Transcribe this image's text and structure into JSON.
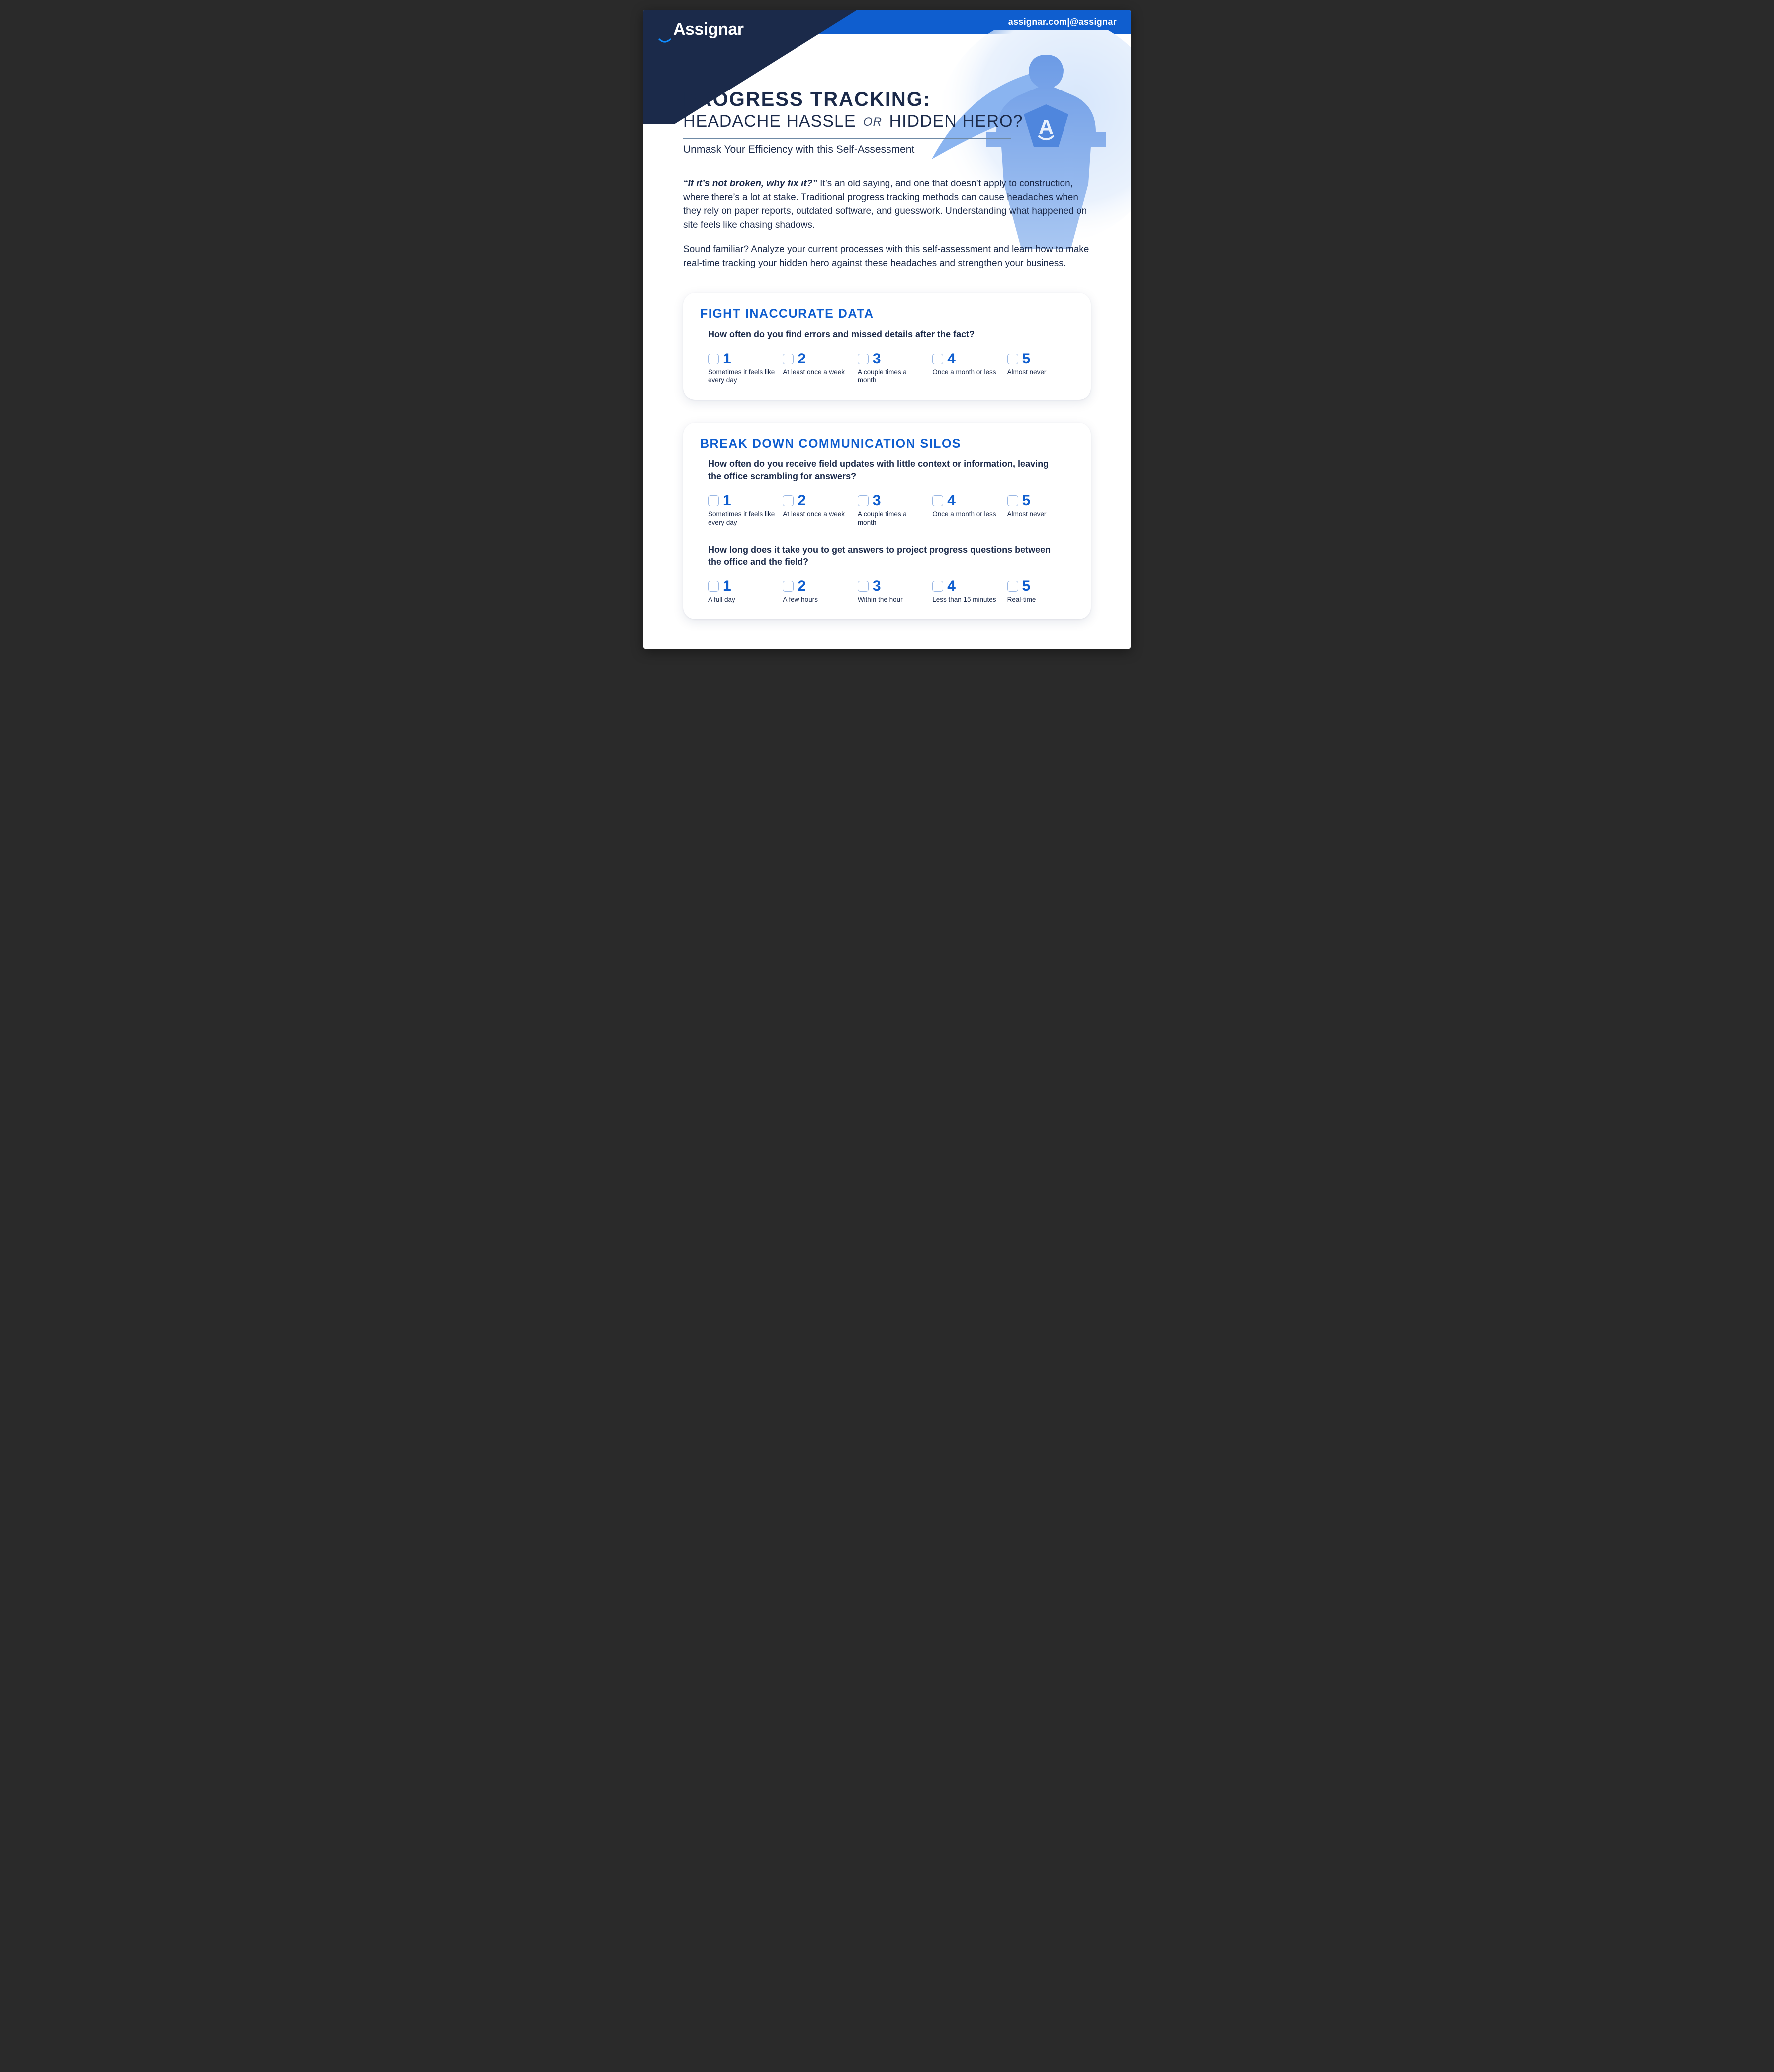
{
  "brand": {
    "name": "Assignar",
    "swoosh_color": "#0f8cff"
  },
  "header": {
    "site": "assignar.com",
    "separator": " | ",
    "handle": "@assignar",
    "bar_bg": "#0f5ecf",
    "wedge_bg": "#1b2a4a"
  },
  "title": {
    "line1": "PROGRESS TRACKING:",
    "line2_a": "HEADACHE HASSLE",
    "line2_or": "OR",
    "line2_b": "HIDDEN HERO?",
    "subtitle": "Unmask Your Efficiency with this Self-Assessment"
  },
  "intro": {
    "quote": "“If it’s not broken, why fix it?”",
    "p1_rest": " It’s an old saying, and one that doesn’t apply to construction, where there’s a lot at stake. Traditional progress tracking methods can cause headaches when they rely on paper reports, outdated software, and guesswork. Understanding what happened on site feels like chasing shadows.",
    "p2": "Sound familiar? Analyze your current processes with this self-assessment and learn how to make real-time tracking your hidden hero against these headaches and strengthen your business."
  },
  "colors": {
    "brand_blue": "#0f5ecf",
    "dark_navy": "#1b2a4a",
    "text": "#1b2a4a",
    "rule": "#6f8aa6",
    "card_rule": "#7ea8e0",
    "checkbox_border": "#9ab7e3",
    "page_bg": "#ffffff",
    "hero_silhouette": "#8ab4f0"
  },
  "hero_badge_letter": "A",
  "cards": [
    {
      "title": "FIGHT INACCURATE DATA",
      "questions": [
        {
          "text": "How often do you find errors and missed details after the fact?",
          "options": [
            {
              "num": "1",
              "label": "Sometimes it feels like every day"
            },
            {
              "num": "2",
              "label": "At least once a week"
            },
            {
              "num": "3",
              "label": "A couple times a month"
            },
            {
              "num": "4",
              "label": "Once a month or less"
            },
            {
              "num": "5",
              "label": "Almost never"
            }
          ]
        }
      ]
    },
    {
      "title": "BREAK DOWN COMMUNICATION SILOS",
      "questions": [
        {
          "text": "How often do you receive field updates with little context or information, leaving the office scrambling for answers?",
          "options": [
            {
              "num": "1",
              "label": "Sometimes it feels like every day"
            },
            {
              "num": "2",
              "label": "At least once a week"
            },
            {
              "num": "3",
              "label": "A couple times a month"
            },
            {
              "num": "4",
              "label": "Once a month or less"
            },
            {
              "num": "5",
              "label": "Almost never"
            }
          ]
        },
        {
          "text": "How long does it take you to get answers to project progress questions between the office and the field?",
          "options": [
            {
              "num": "1",
              "label": "A full day"
            },
            {
              "num": "2",
              "label": "A few hours"
            },
            {
              "num": "3",
              "label": "Within the hour"
            },
            {
              "num": "4",
              "label": "Less than 15 minutes"
            },
            {
              "num": "5",
              "label": "Real-time"
            }
          ]
        }
      ]
    }
  ]
}
